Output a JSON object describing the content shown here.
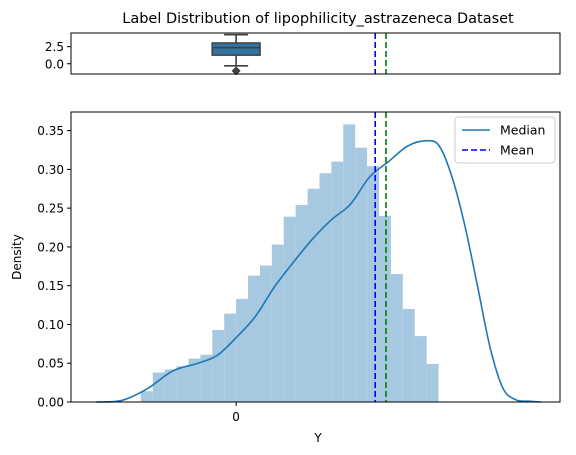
{
  "chart_data": [
    {
      "type": "box",
      "title": "Label Distribution of lipophilicity_astrazeneca Dataset",
      "yticks": [
        0.0,
        2.5
      ],
      "ytick_labels": [
        "0.0",
        "2.5"
      ],
      "ylim": [
        -1.5,
        4.5
      ],
      "box": {
        "whisker_low": -0.3,
        "q1": 1.25,
        "median": 2.35,
        "q3": 3.05,
        "whisker_high": 4.25,
        "outlier": -1.05
      },
      "median_line_x": 2.36,
      "mean_line_x": 2.19,
      "colors": {
        "box": "#3274a1",
        "median": "#008000",
        "mean": "#0000ff"
      }
    },
    {
      "type": "histogram",
      "xlabel": "Y",
      "ylabel": "Density",
      "xlim": [
        -2.6,
        5.1
      ],
      "ylim": [
        0,
        0.374
      ],
      "xticks": [
        0
      ],
      "xtick_labels": [
        "0"
      ],
      "yticks": [
        0.0,
        0.05,
        0.1,
        0.15,
        0.2,
        0.25,
        0.3,
        0.35
      ],
      "ytick_labels": [
        "0.00",
        "0.05",
        "0.10",
        "0.15",
        "0.20",
        "0.25",
        "0.30",
        "0.35"
      ],
      "bin_start": -1.5,
      "bin_width": 0.1875,
      "densities": [
        0.014,
        0.038,
        0.042,
        0.046,
        0.056,
        0.061,
        0.093,
        0.114,
        0.133,
        0.163,
        0.176,
        0.203,
        0.239,
        0.254,
        0.275,
        0.295,
        0.31,
        0.358,
        0.328,
        0.304,
        0.24,
        0.165,
        0.12,
        0.085,
        0.049
      ],
      "kde": {
        "x": [
          -2.2,
          -1.8,
          -1.4,
          -1.0,
          -0.6,
          -0.3,
          0.0,
          0.3,
          0.6,
          0.9,
          1.2,
          1.5,
          1.8,
          2.1,
          2.4,
          2.7,
          3.0,
          3.2,
          3.4,
          3.6,
          3.8,
          4.0,
          4.2,
          4.4,
          4.6,
          4.8
        ],
        "y": [
          0.0,
          0.002,
          0.017,
          0.04,
          0.05,
          0.06,
          0.083,
          0.11,
          0.148,
          0.18,
          0.21,
          0.235,
          0.255,
          0.29,
          0.31,
          0.33,
          0.337,
          0.33,
          0.29,
          0.228,
          0.15,
          0.07,
          0.018,
          0.003,
          0.001,
          0.0
        ]
      },
      "median_line_x": 2.36,
      "mean_line_x": 2.19,
      "legend": {
        "position": "top-right",
        "entries": [
          "Median",
          "Mean"
        ]
      },
      "colors": {
        "bars": "#a6c8e0",
        "kde": "#1f77b4",
        "median": "#008000",
        "mean": "#0000ff"
      }
    }
  ]
}
